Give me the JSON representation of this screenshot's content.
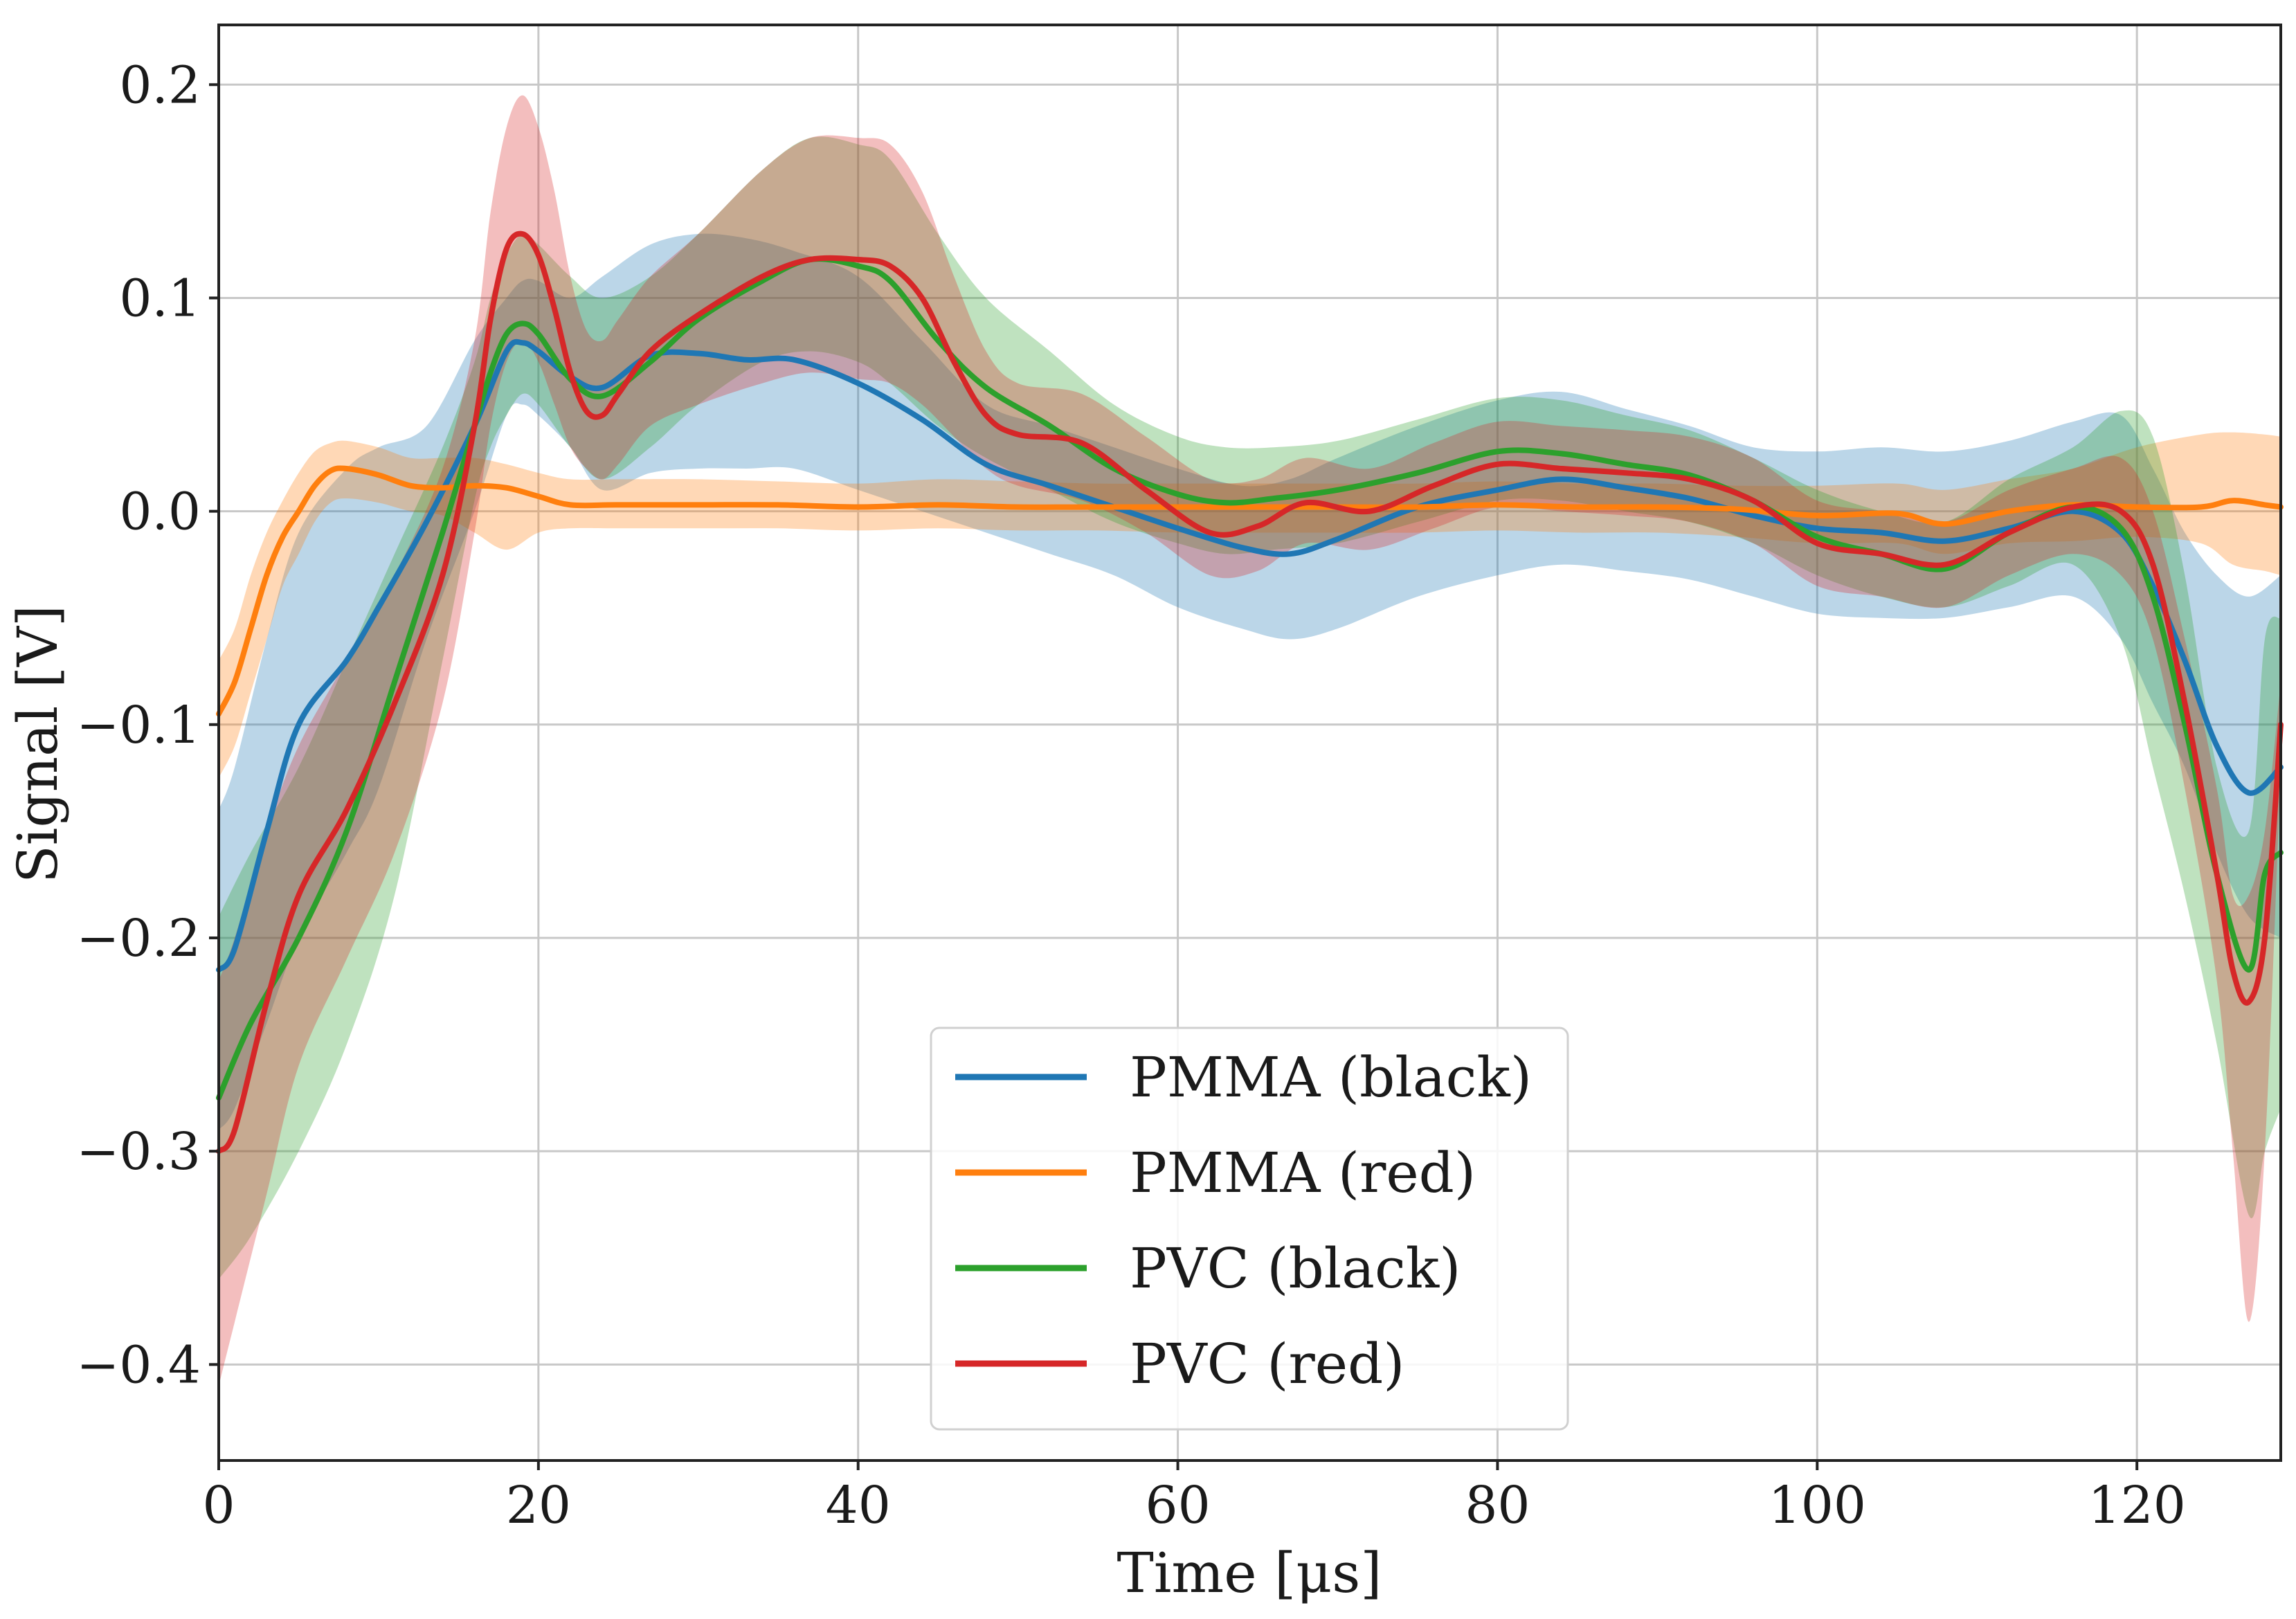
{
  "chart_data": {
    "type": "line",
    "title": "",
    "xlabel": "Time [μs]",
    "ylabel": "Signal [V]",
    "xlim": [
      0,
      129
    ],
    "ylim": [
      -0.445,
      0.228
    ],
    "xticks": [
      0,
      20,
      40,
      60,
      80,
      100,
      120
    ],
    "xtick_labels": [
      "0",
      "20",
      "40",
      "60",
      "80",
      "100",
      "120"
    ],
    "yticks": [
      0.2,
      0.1,
      0.0,
      -0.1,
      -0.2,
      -0.3,
      -0.4
    ],
    "ytick_labels": [
      "0.2",
      "0.1",
      "0.0",
      "−0.1",
      "−0.2",
      "−0.3",
      "−0.4"
    ],
    "grid": true,
    "legend_position": "lower-center",
    "series": [
      {
        "name": "PMMA (black)",
        "color": "#1f77b4",
        "x": [
          0,
          1,
          3,
          5,
          8,
          10,
          13,
          16,
          18,
          19,
          20,
          22,
          24,
          27,
          30,
          33,
          36,
          40,
          44,
          48,
          52,
          56,
          60,
          64,
          67,
          70,
          75,
          80,
          84,
          88,
          92,
          96,
          100,
          104,
          108,
          112,
          116,
          119,
          121,
          123,
          125,
          127,
          129
        ],
        "y": [
          -0.215,
          -0.205,
          -0.15,
          -0.1,
          -0.07,
          -0.045,
          -0.005,
          0.04,
          0.075,
          0.079,
          0.075,
          0.063,
          0.058,
          0.073,
          0.074,
          0.071,
          0.071,
          0.06,
          0.043,
          0.022,
          0.012,
          0.002,
          -0.008,
          -0.017,
          -0.02,
          -0.013,
          0.002,
          0.01,
          0.015,
          0.011,
          0.006,
          -0.002,
          -0.008,
          -0.01,
          -0.014,
          -0.008,
          0.0,
          -0.01,
          -0.035,
          -0.07,
          -0.11,
          -0.132,
          -0.12
        ],
        "upper": [
          -0.14,
          -0.12,
          -0.06,
          -0.01,
          0.02,
          0.03,
          0.04,
          0.08,
          0.1,
          0.108,
          0.108,
          0.1,
          0.11,
          0.125,
          0.13,
          0.128,
          0.122,
          0.11,
          0.08,
          0.05,
          0.04,
          0.03,
          0.02,
          0.012,
          0.015,
          0.025,
          0.04,
          0.052,
          0.056,
          0.048,
          0.04,
          0.03,
          0.028,
          0.03,
          0.028,
          0.033,
          0.042,
          0.045,
          0.02,
          -0.01,
          -0.03,
          -0.04,
          -0.03
        ],
        "lower": [
          -0.29,
          -0.28,
          -0.24,
          -0.2,
          -0.16,
          -0.13,
          -0.06,
          0.0,
          0.045,
          0.05,
          0.045,
          0.03,
          0.01,
          0.018,
          0.02,
          0.02,
          0.02,
          0.01,
          0.0,
          -0.01,
          -0.02,
          -0.03,
          -0.045,
          -0.055,
          -0.06,
          -0.055,
          -0.04,
          -0.03,
          -0.025,
          -0.028,
          -0.032,
          -0.04,
          -0.048,
          -0.05,
          -0.05,
          -0.045,
          -0.04,
          -0.06,
          -0.09,
          -0.12,
          -0.16,
          -0.19,
          -0.2
        ]
      },
      {
        "name": "PMMA (red)",
        "color": "#ff7f0e",
        "x": [
          0,
          1,
          2,
          3,
          4,
          5,
          6,
          7,
          8,
          10,
          12,
          14,
          16,
          18,
          20,
          22,
          25,
          30,
          35,
          40,
          45,
          50,
          55,
          60,
          65,
          70,
          75,
          80,
          85,
          90,
          95,
          100,
          105,
          108,
          112,
          116,
          120,
          124,
          126,
          128,
          129
        ],
        "y": [
          -0.095,
          -0.08,
          -0.055,
          -0.03,
          -0.012,
          0.0,
          0.012,
          0.019,
          0.02,
          0.017,
          0.012,
          0.011,
          0.012,
          0.011,
          0.007,
          0.003,
          0.003,
          0.003,
          0.003,
          0.002,
          0.003,
          0.002,
          0.002,
          0.002,
          0.002,
          0.002,
          0.002,
          0.003,
          0.002,
          0.002,
          0.001,
          -0.002,
          -0.001,
          -0.006,
          0.0,
          0.003,
          0.002,
          0.002,
          0.005,
          0.003,
          0.002
        ],
        "upper": [
          -0.07,
          -0.055,
          -0.03,
          -0.01,
          0.005,
          0.018,
          0.028,
          0.032,
          0.033,
          0.03,
          0.025,
          0.025,
          0.025,
          0.022,
          0.018,
          0.015,
          0.015,
          0.015,
          0.014,
          0.013,
          0.015,
          0.014,
          0.013,
          0.013,
          0.013,
          0.013,
          0.013,
          0.014,
          0.013,
          0.013,
          0.012,
          0.012,
          0.013,
          0.01,
          0.015,
          0.02,
          0.03,
          0.036,
          0.037,
          0.036,
          0.035
        ],
        "lower": [
          -0.125,
          -0.11,
          -0.085,
          -0.06,
          -0.035,
          -0.02,
          -0.005,
          0.004,
          0.006,
          0.004,
          0.0,
          -0.002,
          -0.01,
          -0.018,
          -0.01,
          -0.008,
          -0.008,
          -0.008,
          -0.008,
          -0.009,
          -0.008,
          -0.009,
          -0.009,
          -0.01,
          -0.01,
          -0.01,
          -0.01,
          -0.009,
          -0.01,
          -0.01,
          -0.012,
          -0.015,
          -0.015,
          -0.02,
          -0.015,
          -0.014,
          -0.012,
          -0.015,
          -0.025,
          -0.028,
          -0.03
        ]
      },
      {
        "name": "PVC (black)",
        "color": "#2ca02c",
        "x": [
          0,
          2,
          5,
          8,
          11,
          14,
          16,
          17,
          18,
          19,
          20,
          22,
          24,
          27,
          30,
          34,
          37,
          40,
          42,
          45,
          48,
          52,
          56,
          60,
          63,
          66,
          70,
          75,
          80,
          84,
          88,
          92,
          96,
          100,
          104,
          108,
          112,
          116,
          119,
          121,
          123,
          125,
          127,
          128,
          129
        ],
        "y": [
          -0.275,
          -0.24,
          -0.2,
          -0.15,
          -0.08,
          -0.01,
          0.04,
          0.065,
          0.083,
          0.088,
          0.083,
          0.062,
          0.054,
          0.07,
          0.09,
          0.108,
          0.118,
          0.115,
          0.108,
          0.08,
          0.058,
          0.04,
          0.02,
          0.008,
          0.004,
          0.006,
          0.01,
          0.018,
          0.028,
          0.027,
          0.022,
          0.017,
          0.005,
          -0.012,
          -0.02,
          -0.027,
          -0.01,
          0.002,
          -0.008,
          -0.04,
          -0.1,
          -0.17,
          -0.215,
          -0.17,
          -0.16
        ],
        "upper": [
          -0.19,
          -0.16,
          -0.12,
          -0.07,
          -0.02,
          0.03,
          0.07,
          0.1,
          0.12,
          0.13,
          0.125,
          0.11,
          0.1,
          0.11,
          0.13,
          0.16,
          0.175,
          0.172,
          0.165,
          0.13,
          0.1,
          0.075,
          0.05,
          0.035,
          0.03,
          0.03,
          0.033,
          0.043,
          0.053,
          0.052,
          0.045,
          0.038,
          0.025,
          0.01,
          0.0,
          -0.005,
          0.015,
          0.03,
          0.047,
          0.035,
          -0.03,
          -0.12,
          -0.15,
          -0.06,
          -0.05
        ],
        "lower": [
          -0.36,
          -0.34,
          -0.3,
          -0.25,
          -0.18,
          -0.07,
          0.005,
          0.03,
          0.045,
          0.055,
          0.05,
          0.03,
          0.015,
          0.03,
          0.05,
          0.07,
          0.075,
          0.07,
          0.06,
          0.04,
          0.025,
          0.01,
          -0.005,
          -0.015,
          -0.02,
          -0.018,
          -0.015,
          -0.005,
          0.005,
          0.005,
          0.0,
          -0.005,
          -0.015,
          -0.03,
          -0.04,
          -0.045,
          -0.035,
          -0.025,
          -0.06,
          -0.12,
          -0.18,
          -0.25,
          -0.33,
          -0.3,
          -0.28
        ]
      },
      {
        "name": "PVC (red)",
        "color": "#d62728",
        "x": [
          0,
          1,
          3,
          5,
          8,
          11,
          14,
          16,
          17,
          18,
          19,
          20,
          21,
          22,
          23,
          24,
          25,
          27,
          30,
          34,
          37,
          40,
          42,
          44,
          46,
          48,
          50,
          54,
          58,
          62,
          65,
          68,
          72,
          76,
          80,
          84,
          88,
          92,
          96,
          100,
          104,
          108,
          112,
          116,
          119,
          121,
          123,
          125,
          126,
          127,
          128,
          129
        ],
        "y": [
          -0.3,
          -0.29,
          -0.23,
          -0.18,
          -0.14,
          -0.09,
          -0.03,
          0.04,
          0.09,
          0.123,
          0.13,
          0.12,
          0.095,
          0.065,
          0.047,
          0.045,
          0.055,
          0.075,
          0.092,
          0.11,
          0.118,
          0.118,
          0.115,
          0.1,
          0.07,
          0.045,
          0.036,
          0.032,
          0.01,
          -0.01,
          -0.007,
          0.004,
          0.0,
          0.012,
          0.022,
          0.02,
          0.018,
          0.015,
          0.005,
          -0.015,
          -0.02,
          -0.025,
          -0.01,
          0.002,
          0.0,
          -0.025,
          -0.09,
          -0.17,
          -0.215,
          -0.23,
          -0.2,
          -0.1
        ],
        "upper": [
          -0.22,
          -0.2,
          -0.15,
          -0.11,
          -0.07,
          -0.03,
          0.02,
          0.08,
          0.14,
          0.18,
          0.195,
          0.18,
          0.15,
          0.11,
          0.085,
          0.08,
          0.09,
          0.11,
          0.13,
          0.16,
          0.175,
          0.175,
          0.172,
          0.15,
          0.11,
          0.075,
          0.06,
          0.055,
          0.035,
          0.015,
          0.015,
          0.025,
          0.02,
          0.032,
          0.042,
          0.04,
          0.038,
          0.035,
          0.025,
          0.005,
          0.0,
          -0.005,
          0.01,
          0.02,
          0.025,
          0.0,
          -0.06,
          -0.13,
          -0.18,
          -0.18,
          -0.15,
          -0.08
        ],
        "lower": [
          -0.41,
          -0.38,
          -0.32,
          -0.26,
          -0.21,
          -0.16,
          -0.09,
          -0.01,
          0.04,
          0.07,
          0.08,
          0.07,
          0.05,
          0.03,
          0.02,
          0.015,
          0.022,
          0.04,
          0.05,
          0.06,
          0.065,
          0.062,
          0.06,
          0.05,
          0.035,
          0.02,
          0.012,
          0.005,
          -0.01,
          -0.03,
          -0.028,
          -0.015,
          -0.018,
          -0.008,
          0.002,
          0.0,
          -0.002,
          -0.005,
          -0.015,
          -0.035,
          -0.04,
          -0.045,
          -0.03,
          -0.02,
          -0.03,
          -0.06,
          -0.13,
          -0.22,
          -0.3,
          -0.38,
          -0.3,
          -0.12
        ]
      }
    ]
  }
}
